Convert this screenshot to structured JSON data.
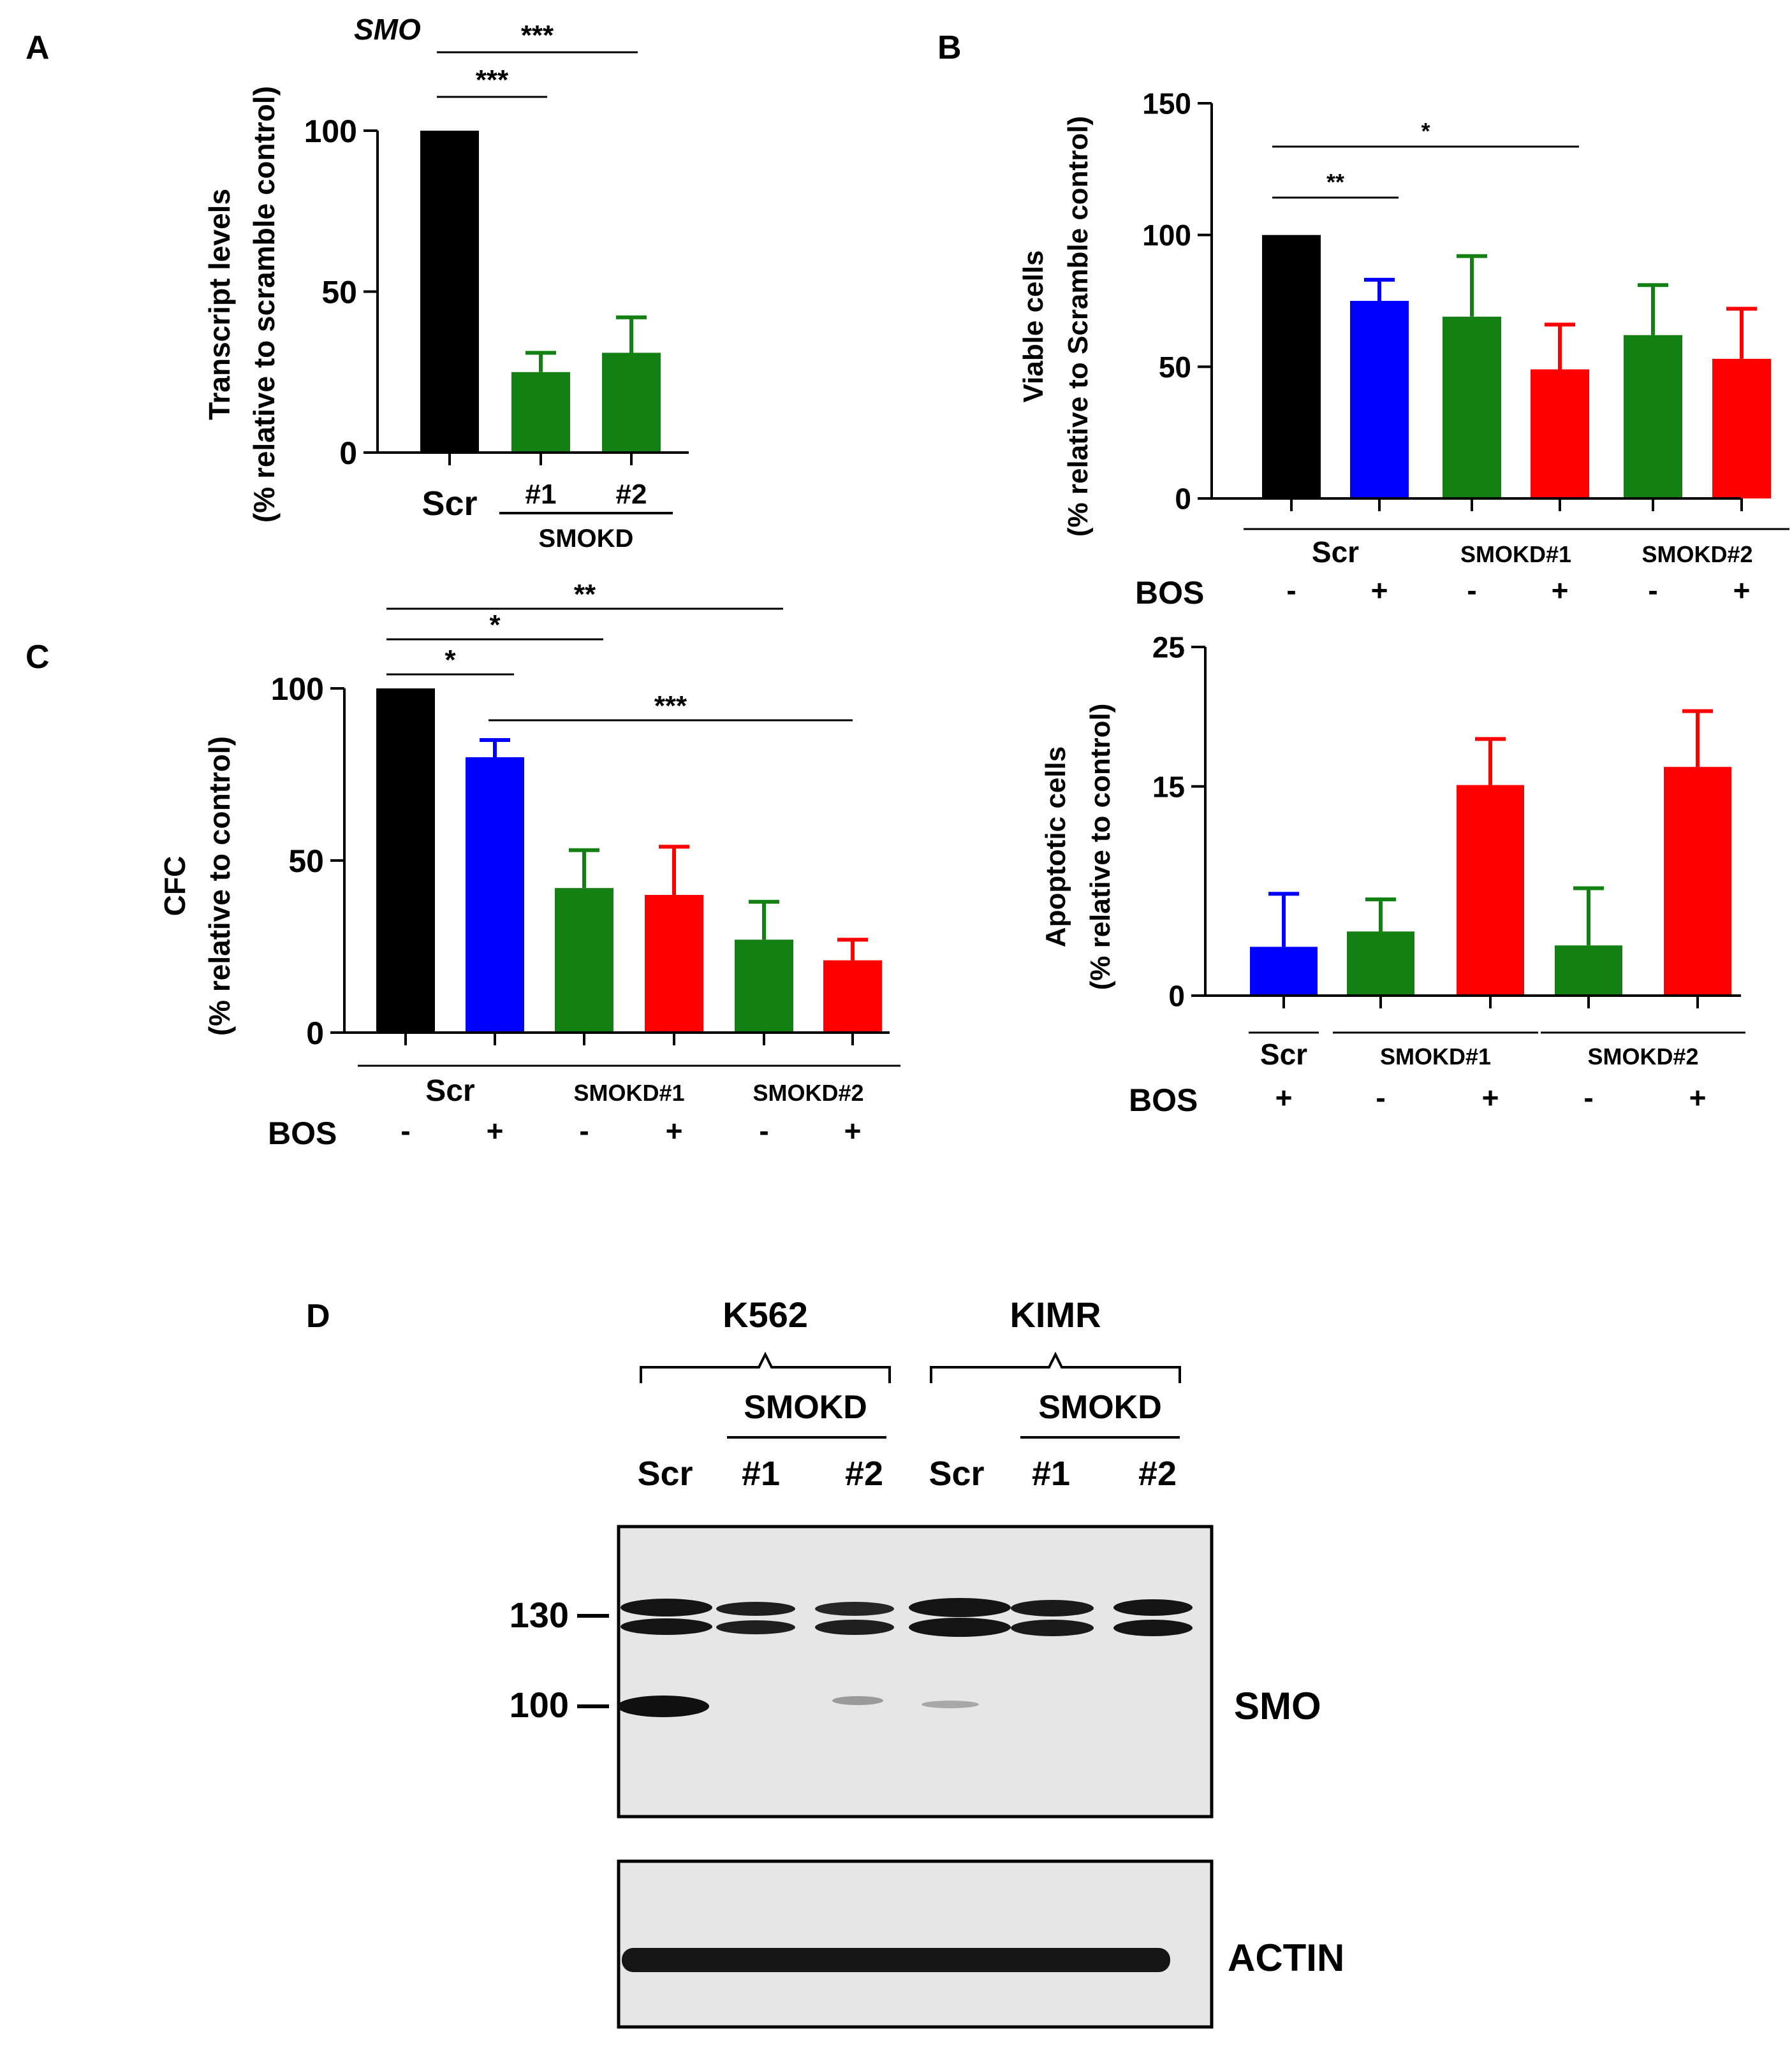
{
  "colors": {
    "black": "#000000",
    "blue": "#0000ff",
    "green": "#138013",
    "red": "#ff0000",
    "blot_bg": "#e6e6e6",
    "band": "#141414"
  },
  "panels": {
    "A": {
      "letter": "A",
      "gene": "SMO"
    },
    "B": {
      "letter": "B"
    },
    "C": {
      "letter": "C"
    },
    "D": {
      "letter": "D"
    }
  },
  "chart_data": [
    {
      "id": "A",
      "type": "bar",
      "title": "SMO",
      "ylabel": [
        "Transcript levels",
        "(% relative to scramble control)"
      ],
      "ylim": [
        0,
        100
      ],
      "yticks": [
        0,
        50,
        100
      ],
      "categories": [
        "Scr",
        "#1",
        "#2"
      ],
      "values": [
        100,
        25,
        31
      ],
      "errors": [
        0,
        6,
        11
      ],
      "bar_colors": [
        "black",
        "green",
        "green"
      ],
      "group_labels": [
        {
          "label": "SMOKD",
          "from": 1,
          "to": 2
        }
      ],
      "significance": [
        {
          "from": 0,
          "to": 2,
          "label": "***"
        },
        {
          "from": 0,
          "to": 1,
          "label": "***"
        }
      ]
    },
    {
      "id": "B_top",
      "type": "bar",
      "ylabel": [
        "Viable cells",
        "(% relative to Scramble control)"
      ],
      "ylim": [
        0,
        150
      ],
      "yticks": [
        0,
        50,
        100,
        150
      ],
      "categories": [
        "-",
        "+",
        "-",
        "+",
        "-",
        "+"
      ],
      "row_label": "BOS",
      "values": [
        100,
        75,
        69,
        49,
        62,
        53
      ],
      "errors": [
        0,
        8,
        23,
        17,
        19,
        19
      ],
      "bar_colors": [
        "black",
        "blue",
        "green",
        "red",
        "green",
        "red"
      ],
      "group_labels": [
        {
          "label": "Scr",
          "from": 0,
          "to": 1
        },
        {
          "label": "SMOKD#1",
          "from": 2,
          "to": 3
        },
        {
          "label": "SMOKD#2",
          "from": 4,
          "to": 5
        }
      ],
      "significance": [
        {
          "from": 0,
          "to": 3,
          "label": "*"
        },
        {
          "from": 0,
          "to": 1,
          "label": "**"
        }
      ]
    },
    {
      "id": "B_bottom",
      "type": "bar",
      "ylabel": [
        "Apoptotic cells",
        "(% relative to control)"
      ],
      "ylim": [
        0,
        25
      ],
      "yticks": [
        0,
        15,
        25
      ],
      "tick_positions": [
        0,
        15,
        25
      ],
      "categories": [
        "+",
        "-",
        "+",
        "-",
        "+"
      ],
      "row_label": "BOS",
      "values": [
        3.5,
        4.6,
        15.1,
        3.6,
        16.4
      ],
      "errors": [
        3.8,
        2.3,
        3.3,
        4.1,
        4.0
      ],
      "bar_colors": [
        "blue",
        "green",
        "red",
        "green",
        "red"
      ],
      "group_labels": [
        {
          "label": "Scr",
          "from": 0,
          "to": 0
        },
        {
          "label": "SMOKD#1",
          "from": 1,
          "to": 2
        },
        {
          "label": "SMOKD#2",
          "from": 3,
          "to": 4
        }
      ],
      "significance": []
    },
    {
      "id": "C",
      "type": "bar",
      "ylabel": [
        "CFC",
        "(% relative to control)"
      ],
      "ylim": [
        0,
        100
      ],
      "yticks": [
        0,
        50,
        100
      ],
      "categories": [
        "-",
        "+",
        "-",
        "+",
        "-",
        "+"
      ],
      "row_label": "BOS",
      "values": [
        100,
        80,
        42,
        40,
        27,
        21
      ],
      "errors": [
        0,
        5,
        11,
        14,
        11,
        6
      ],
      "bar_colors": [
        "black",
        "blue",
        "green",
        "red",
        "green",
        "red"
      ],
      "group_labels": [
        {
          "label": "Scr",
          "from": 0,
          "to": 1
        },
        {
          "label": "SMOKD#1",
          "from": 2,
          "to": 3
        },
        {
          "label": "SMOKD#2",
          "from": 4,
          "to": 5
        }
      ],
      "significance": [
        {
          "from": 0,
          "to": 4,
          "label": "**"
        },
        {
          "from": 0,
          "to": 2,
          "label": "*"
        },
        {
          "from": 0,
          "to": 1,
          "label": "*"
        },
        {
          "from": 1,
          "to": 5,
          "label": "***"
        }
      ]
    }
  ],
  "blot": {
    "cell_lines": [
      "K562",
      "KIMR"
    ],
    "subgroup_label": "SMOKD",
    "lanes": [
      "Scr",
      "#1",
      "#2",
      "Scr",
      "#1",
      "#2"
    ],
    "markers": [
      "130",
      "100"
    ],
    "row_labels": [
      "SMO",
      "ACTIN"
    ]
  }
}
